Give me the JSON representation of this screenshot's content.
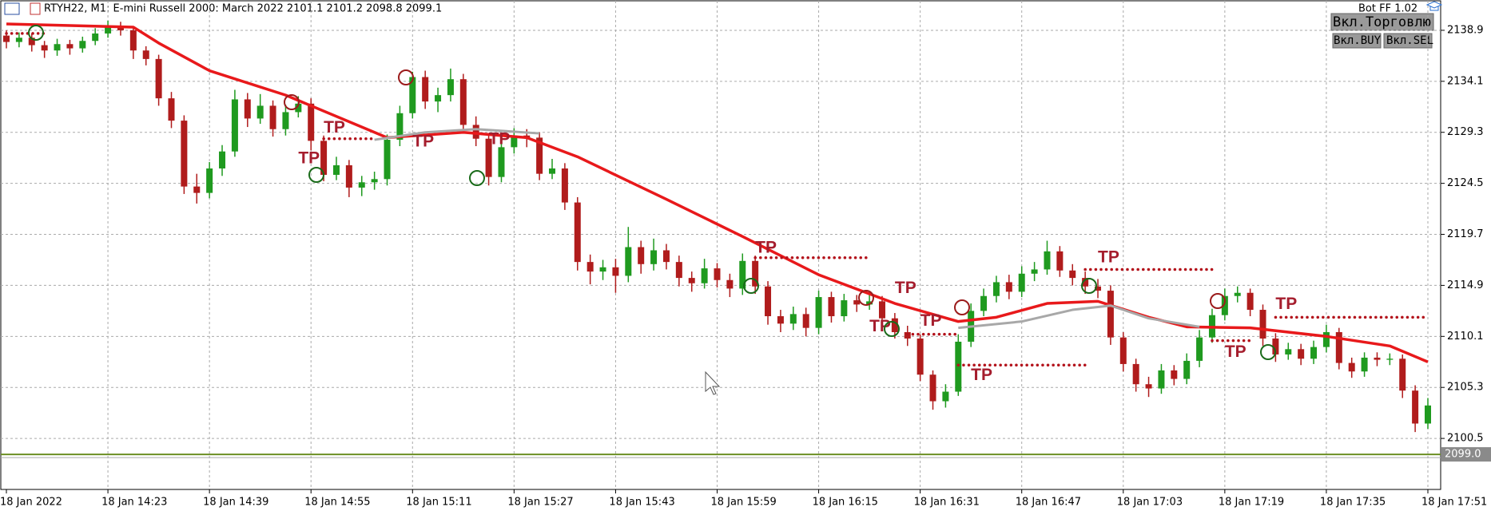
{
  "chart_data": {
    "type": "candlestick",
    "title": "RTYH22, M1: E-mini Russell 2000: March 2022  2101.1 2101.2 2098.8 2099.1",
    "ohlc": {
      "open": [
        2138.4,
        2137.8,
        2138.2,
        2137.5,
        2137.0,
        2137.6,
        2137.2,
        2137.9,
        2138.6,
        2139.2,
        2138.9,
        2137.0,
        2136.2,
        2132.5,
        2130.4,
        2124.2,
        2123.6,
        2125.9,
        2127.5,
        2132.4,
        2130.6,
        2131.8,
        2129.6,
        2131.2,
        2132.0,
        2128.5,
        2125.3,
        2126.2,
        2124.1,
        2124.6,
        2124.9,
        2128.6,
        2131.1,
        2134.5,
        2132.2,
        2132.8,
        2134.3,
        2130.0,
        2128.7,
        2125.1,
        2127.9,
        2129.0,
        2128.8,
        2125.4,
        2125.9,
        2122.7,
        2117.1,
        2116.2,
        2116.6,
        2115.8,
        2118.5,
        2116.9,
        2118.2,
        2117.1,
        2115.6,
        2115.1,
        2116.5,
        2115.4,
        2114.6,
        2117.2,
        2114.8,
        2112.0,
        2111.3,
        2112.2,
        2110.9,
        2113.8,
        2112.0,
        2113.5,
        2113.1,
        2113.4,
        2111.8,
        2110.5,
        2109.9,
        2106.5,
        2104.0,
        2104.9,
        2109.6,
        2112.5,
        2113.9,
        2115.2,
        2114.3,
        2116.0,
        2116.4,
        2118.1,
        2116.3,
        2115.6,
        2114.8,
        2114.4,
        2110.0,
        2107.5,
        2105.6,
        2105.2,
        2106.9,
        2106.1,
        2107.8,
        2110.0,
        2112.1,
        2113.9,
        2114.2,
        2112.6,
        2109.9,
        2108.4,
        2108.9,
        2108.0,
        2109.1,
        2110.5,
        2107.6,
        2106.8,
        2108.1,
        2107.9,
        2108.0,
        2105.0,
        2101.9
      ],
      "high": [
        2138.9,
        2138.7,
        2138.6,
        2137.9,
        2138.1,
        2138.0,
        2138.3,
        2139.1,
        2139.8,
        2139.7,
        2139.3,
        2137.4,
        2136.6,
        2133.1,
        2130.9,
        2125.4,
        2126.5,
        2128.1,
        2133.3,
        2133.0,
        2132.9,
        2132.3,
        2131.9,
        2132.7,
        2132.5,
        2129.0,
        2127.0,
        2126.7,
        2125.2,
        2125.6,
        2129.1,
        2131.8,
        2135.0,
        2135.1,
        2133.5,
        2135.3,
        2134.8,
        2130.8,
        2129.2,
        2128.6,
        2129.7,
        2129.6,
        2129.3,
        2126.8,
        2126.4,
        2123.2,
        2117.8,
        2117.3,
        2117.4,
        2120.4,
        2119.1,
        2119.3,
        2118.8,
        2117.7,
        2116.2,
        2117.4,
        2117.0,
        2116.0,
        2117.9,
        2117.7,
        2115.3,
        2112.6,
        2112.9,
        2112.8,
        2114.4,
        2114.3,
        2114.1,
        2114.0,
        2114.3,
        2113.9,
        2112.3,
        2111.1,
        2110.3,
        2106.9,
        2105.6,
        2110.3,
        2113.2,
        2114.6,
        2115.8,
        2115.9,
        2116.7,
        2117.1,
        2119.1,
        2118.6,
        2116.9,
        2116.2,
        2115.5,
        2114.9,
        2110.5,
        2108.0,
        2106.3,
        2107.5,
        2107.4,
        2108.5,
        2110.7,
        2112.7,
        2114.6,
        2114.8,
        2114.6,
        2113.1,
        2110.4,
        2109.5,
        2109.4,
        2109.7,
        2111.2,
        2110.9,
        2108.1,
        2108.6,
        2108.6,
        2108.5,
        2108.4,
        2105.5,
        2104.3
      ],
      "low": [
        2137.2,
        2137.3,
        2136.9,
        2136.3,
        2136.5,
        2136.6,
        2136.8,
        2137.5,
        2138.2,
        2138.4,
        2136.2,
        2135.6,
        2131.8,
        2129.7,
        2123.5,
        2122.6,
        2123.1,
        2125.2,
        2127.0,
        2129.8,
        2130.1,
        2128.9,
        2129.0,
        2130.7,
        2127.6,
        2124.7,
        2124.8,
        2123.2,
        2123.3,
        2123.9,
        2124.3,
        2128.0,
        2130.6,
        2131.5,
        2131.2,
        2132.2,
        2129.4,
        2128.0,
        2124.3,
        2124.6,
        2127.3,
        2127.9,
        2124.8,
        2124.9,
        2122.0,
        2116.3,
        2115.0,
        2115.4,
        2114.2,
        2115.2,
        2116.0,
        2116.3,
        2116.4,
        2114.8,
        2114.3,
        2114.6,
        2114.7,
        2113.8,
        2114.0,
        2114.1,
        2111.2,
        2110.5,
        2110.7,
        2110.1,
        2110.3,
        2111.4,
        2111.5,
        2112.4,
        2112.6,
        2111.2,
        2109.9,
        2109.2,
        2105.9,
        2103.2,
        2103.4,
        2104.5,
        2109.1,
        2112.0,
        2113.3,
        2113.6,
        2113.8,
        2115.3,
        2115.9,
        2115.7,
        2114.9,
        2114.1,
        2113.7,
        2109.3,
        2106.8,
        2104.9,
        2104.4,
        2104.7,
        2105.5,
        2105.6,
        2107.2,
        2109.5,
        2111.6,
        2113.3,
        2112.0,
        2109.2,
        2107.7,
        2107.9,
        2107.4,
        2107.5,
        2108.6,
        2107.0,
        2106.2,
        2106.3,
        2107.3,
        2107.4,
        2104.3,
        2101.1,
        2101.4
      ],
      "close": [
        2137.8,
        2138.2,
        2137.5,
        2137.0,
        2137.6,
        2137.2,
        2137.9,
        2138.6,
        2139.2,
        2138.9,
        2137.0,
        2136.2,
        2132.5,
        2130.4,
        2124.2,
        2123.6,
        2125.9,
        2127.5,
        2132.4,
        2130.6,
        2131.8,
        2129.6,
        2131.2,
        2132.0,
        2128.5,
        2125.3,
        2126.2,
        2124.1,
        2124.6,
        2124.9,
        2128.6,
        2131.1,
        2134.5,
        2132.2,
        2132.8,
        2134.3,
        2130.0,
        2128.7,
        2125.1,
        2127.9,
        2129.0,
        2128.8,
        2125.4,
        2125.9,
        2122.7,
        2117.1,
        2116.2,
        2116.6,
        2115.8,
        2118.5,
        2116.9,
        2118.2,
        2117.1,
        2115.6,
        2115.1,
        2116.5,
        2115.4,
        2114.6,
        2117.2,
        2114.8,
        2112.0,
        2111.3,
        2112.2,
        2110.9,
        2113.8,
        2112.0,
        2113.5,
        2113.1,
        2113.4,
        2111.8,
        2110.5,
        2109.9,
        2106.5,
        2104.0,
        2104.9,
        2109.6,
        2112.5,
        2113.9,
        2115.2,
        2114.3,
        2116.0,
        2116.4,
        2118.1,
        2116.3,
        2115.6,
        2114.8,
        2114.4,
        2110.0,
        2107.5,
        2105.6,
        2105.2,
        2106.9,
        2106.1,
        2107.8,
        2110.0,
        2112.1,
        2113.9,
        2114.2,
        2112.6,
        2109.9,
        2108.4,
        2108.9,
        2108.0,
        2109.1,
        2110.5,
        2107.6,
        2106.8,
        2108.1,
        2107.9,
        2108.0,
        2105.0,
        2101.9,
        2103.6
      ]
    },
    "up_color": "#1f9a1f",
    "down_color": "#b01c1c",
    "lines": [
      {
        "color": "#e8191b",
        "x": [
          0,
          10,
          12,
          16,
          22,
          30,
          36,
          41,
          45,
          52,
          58,
          64,
          70,
          75,
          78,
          82,
          86,
          90,
          93,
          98,
          104,
          109,
          112
        ],
        "values": [
          2139.5,
          2139.2,
          2137.7,
          2135.1,
          2132.8,
          2128.8,
          2129.3,
          2128.8,
          2127.0,
          2123.0,
          2119.5,
          2115.9,
          2113.2,
          2111.5,
          2111.9,
          2113.2,
          2113.4,
          2111.9,
          2111.0,
          2110.9,
          2110.1,
          2109.2,
          2107.7
        ]
      },
      {
        "color": "#a8a8a8",
        "x": [
          29,
          33,
          37,
          42,
          60,
          75,
          80,
          84,
          87,
          90,
          94
        ],
        "values": [
          2128.6,
          2129.3,
          2129.6,
          2129.2,
          null,
          2110.9,
          2111.5,
          2112.6,
          2113.0,
          2111.8,
          2111.0
        ]
      }
    ],
    "levels": [
      {
        "price": 2138.6,
        "from": 0,
        "to": 3
      },
      {
        "price": 2128.7,
        "from": 25,
        "to": 29
      },
      {
        "price": 2117.5,
        "from": 59,
        "to": 68
      },
      {
        "price": 2110.3,
        "from": 71,
        "to": 75
      },
      {
        "price": 2107.4,
        "from": 75,
        "to": 85
      },
      {
        "price": 2116.4,
        "from": 85,
        "to": 95
      },
      {
        "price": 2111.9,
        "from": 100,
        "to": 112
      },
      {
        "price": 2109.7,
        "from": 95,
        "to": 98
      }
    ],
    "level_color": "#b3121b",
    "annotations": [
      {
        "text": "TP",
        "x": 25,
        "price": 2129.7
      },
      {
        "text": "TP",
        "x": 23,
        "price": 2126.8
      },
      {
        "text": "TP",
        "x": 32,
        "price": 2128.4
      },
      {
        "text": "TP",
        "x": 38,
        "price": 2128.6
      },
      {
        "text": "TP",
        "x": 59,
        "price": 2118.4
      },
      {
        "text": "TP",
        "x": 70,
        "price": 2114.6
      },
      {
        "text": "TP",
        "x": 68,
        "price": 2111.0
      },
      {
        "text": "TP",
        "x": 72,
        "price": 2111.5
      },
      {
        "text": "TP",
        "x": 76,
        "price": 2106.4
      },
      {
        "text": "TP",
        "x": 86,
        "price": 2117.5
      },
      {
        "text": "TP",
        "x": 96,
        "price": 2108.6
      },
      {
        "text": "TP",
        "x": 100,
        "price": 2113.1
      }
    ],
    "last_price": {
      "value": 2099.0,
      "label": "2099.0"
    },
    "ylim": [
      2095.7,
      2141.75
    ],
    "yticks": [
      2100.5,
      2105.3,
      2110.1,
      2114.9,
      2119.7,
      2124.5,
      2129.3,
      2134.1,
      2138.9
    ],
    "xlim": [
      0,
      112
    ],
    "xticks": [
      {
        "value": 0,
        "label": "18 Jan 2022"
      },
      {
        "value": 8,
        "label": "18 Jan 14:23"
      },
      {
        "value": 16,
        "label": "18 Jan 14:39"
      },
      {
        "value": 24,
        "label": "18 Jan 14:55"
      },
      {
        "value": 32,
        "label": "18 Jan 15:11"
      },
      {
        "value": 40,
        "label": "18 Jan 15:27"
      },
      {
        "value": 48,
        "label": "18 Jan 15:43"
      },
      {
        "value": 56,
        "label": "18 Jan 15:59"
      },
      {
        "value": 64,
        "label": "18 Jan 16:15"
      },
      {
        "value": 72,
        "label": "18 Jan 16:31"
      },
      {
        "value": 80,
        "label": "18 Jan 16:47"
      },
      {
        "value": 88,
        "label": "18 Jan 17:03"
      },
      {
        "value": 96,
        "label": "18 Jan 17:19"
      },
      {
        "value": 104,
        "label": "18 Jan 17:35"
      },
      {
        "value": 112,
        "label": "18 Jan 17:51"
      }
    ],
    "grid": true
  },
  "panel": {
    "bot": "Bot FF 1.02",
    "trade": "Вкл.Торговлю",
    "buy": "Вкл.BUY",
    "sell": "Вкл.SEL"
  }
}
